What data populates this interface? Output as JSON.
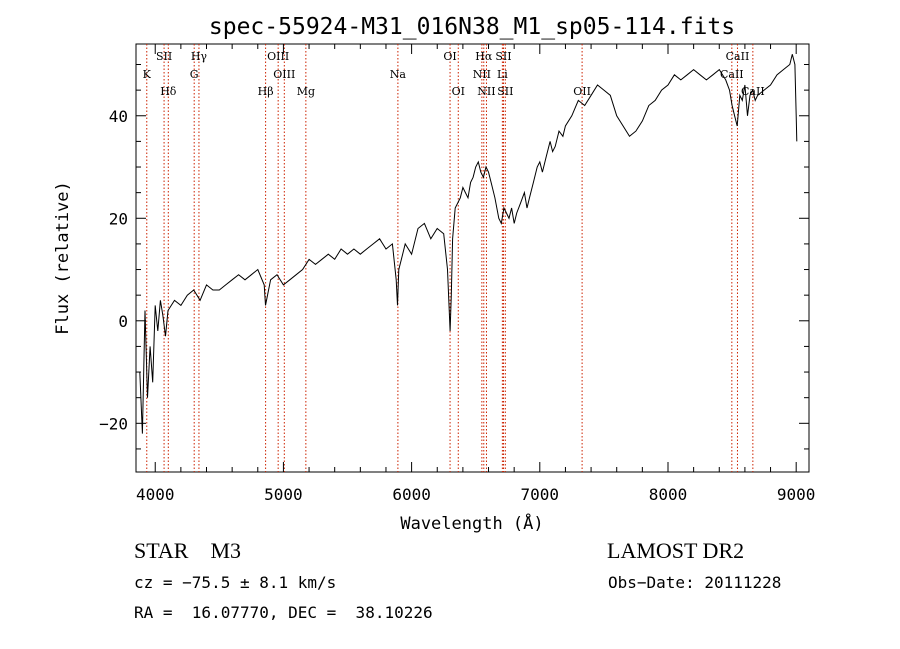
{
  "chart_data": {
    "type": "line",
    "title": "spec-55924-M31_016N38_M1_sp05-114.fits",
    "xlabel": "Wavelength (Å)",
    "ylabel": "Flux (relative)",
    "xlim": [
      3850,
      9100
    ],
    "ylim": [
      -29.5,
      54
    ],
    "xticks": [
      4000,
      5000,
      6000,
      7000,
      8000,
      9000
    ],
    "xtick_labels": [
      "4000",
      "5000",
      "6000",
      "7000",
      "8000",
      "9000"
    ],
    "yticks": [
      -20,
      0,
      20,
      40
    ],
    "ytick_labels": [
      "−20",
      "0",
      "20",
      "40"
    ],
    "grid": false,
    "series": [
      {
        "x": [
          3880,
          3900,
          3920,
          3940,
          3960,
          3980,
          4000,
          4020,
          4040,
          4060,
          4080,
          4100,
          4150,
          4200,
          4250,
          4300,
          4350,
          4400,
          4450,
          4500,
          4550,
          4600,
          4650,
          4700,
          4750,
          4800,
          4850,
          4860,
          4900,
          4950,
          5000,
          5050,
          5100,
          5150,
          5200,
          5250,
          5300,
          5350,
          5400,
          5450,
          5500,
          5550,
          5600,
          5650,
          5700,
          5750,
          5800,
          5850,
          5880,
          5890,
          5900,
          5920,
          5950,
          6000,
          6050,
          6100,
          6150,
          6200,
          6250,
          6280,
          6300,
          6310,
          6320,
          6340,
          6360,
          6380,
          6400,
          6420,
          6440,
          6460,
          6480,
          6500,
          6520,
          6540,
          6560,
          6580,
          6600,
          6620,
          6650,
          6680,
          6700,
          6720,
          6740,
          6760,
          6780,
          6800,
          6820,
          6850,
          6880,
          6900,
          6920,
          6950,
          6980,
          7000,
          7020,
          7050,
          7080,
          7100,
          7120,
          7150,
          7180,
          7200,
          7250,
          7300,
          7350,
          7400,
          7450,
          7500,
          7550,
          7600,
          7650,
          7700,
          7750,
          7800,
          7850,
          7900,
          7950,
          8000,
          8050,
          8100,
          8150,
          8200,
          8250,
          8300,
          8350,
          8400,
          8450,
          8480,
          8500,
          8520,
          8540,
          8560,
          8580,
          8600,
          8620,
          8640,
          8660,
          8680,
          8700,
          8750,
          8800,
          8850,
          8900,
          8950,
          8970,
          8990,
          9000,
          9005
        ],
        "y": [
          -10,
          -22,
          2,
          -15,
          -5,
          -12,
          3,
          -2,
          4,
          1,
          -3,
          2,
          4,
          3,
          5,
          6,
          4,
          7,
          6,
          6,
          7,
          8,
          9,
          8,
          9,
          10,
          7,
          3,
          8,
          9,
          7,
          8,
          9,
          10,
          12,
          11,
          12,
          13,
          12,
          14,
          13,
          14,
          13,
          14,
          15,
          16,
          14,
          15,
          8,
          3,
          10,
          12,
          15,
          13,
          18,
          19,
          16,
          18,
          17,
          10,
          -2,
          5,
          16,
          22,
          23,
          24,
          26,
          25,
          24,
          27,
          28,
          30,
          31,
          29,
          28,
          30,
          29,
          27,
          24,
          20,
          19,
          22,
          21,
          20,
          22,
          19,
          21,
          23,
          25,
          22,
          24,
          27,
          30,
          31,
          29,
          32,
          35,
          33,
          34,
          37,
          36,
          38,
          40,
          43,
          42,
          44,
          46,
          45,
          44,
          40,
          38,
          36,
          37,
          39,
          42,
          43,
          45,
          46,
          48,
          47,
          48,
          49,
          48,
          47,
          48,
          49,
          47,
          45,
          42,
          40,
          38,
          44,
          43,
          46,
          40,
          44,
          45,
          43,
          44,
          45,
          46,
          48,
          49,
          50,
          52,
          50,
          40,
          35
        ]
      }
    ],
    "lines": [
      {
        "label": "K",
        "x": 3934,
        "level": 1
      },
      {
        "label": "SII",
        "x": 4069,
        "level": 0
      },
      {
        "label": "Hδ",
        "x": 4102,
        "level": 2
      },
      {
        "label": "Hγ",
        "x": 4341,
        "level": 0
      },
      {
        "label": "G",
        "x": 4304,
        "level": 1
      },
      {
        "label": "OIII",
        "x": 4959,
        "level": 0
      },
      {
        "label": "OIII",
        "x": 5007,
        "level": 1
      },
      {
        "label": "Hβ",
        "x": 4861,
        "level": 2
      },
      {
        "label": "Mg",
        "x": 5175,
        "level": 2
      },
      {
        "label": "Na",
        "x": 5893,
        "level": 1
      },
      {
        "label": "OI",
        "x": 6300,
        "level": 0
      },
      {
        "label": "OI",
        "x": 6364,
        "level": 2
      },
      {
        "label": "Hα",
        "x": 6563,
        "level": 0
      },
      {
        "label": "SII",
        "x": 6717,
        "level": 0
      },
      {
        "label": "NII",
        "x": 6548,
        "level": 1
      },
      {
        "label": "Li",
        "x": 6708,
        "level": 1
      },
      {
        "label": "NII",
        "x": 6584,
        "level": 2
      },
      {
        "label": "SII",
        "x": 6731,
        "level": 2
      },
      {
        "label": "OII",
        "x": 7330,
        "level": 2
      },
      {
        "label": "CaII",
        "x": 8542,
        "level": 0
      },
      {
        "label": "CaII",
        "x": 8498,
        "level": 1
      },
      {
        "label": "CaII",
        "x": 8662,
        "level": 2
      }
    ],
    "colors": {
      "spectrum": "#000000",
      "line_markers": "#cc2200"
    }
  },
  "info": {
    "class": "STAR",
    "subclass": "M3",
    "survey": "LAMOST DR2",
    "cz": "cz = −75.5 ± 8.1 km/s",
    "obs_date": "Obs−Date: 20111228",
    "radec": "RA =  16.07770, DEC =  38.10226"
  }
}
